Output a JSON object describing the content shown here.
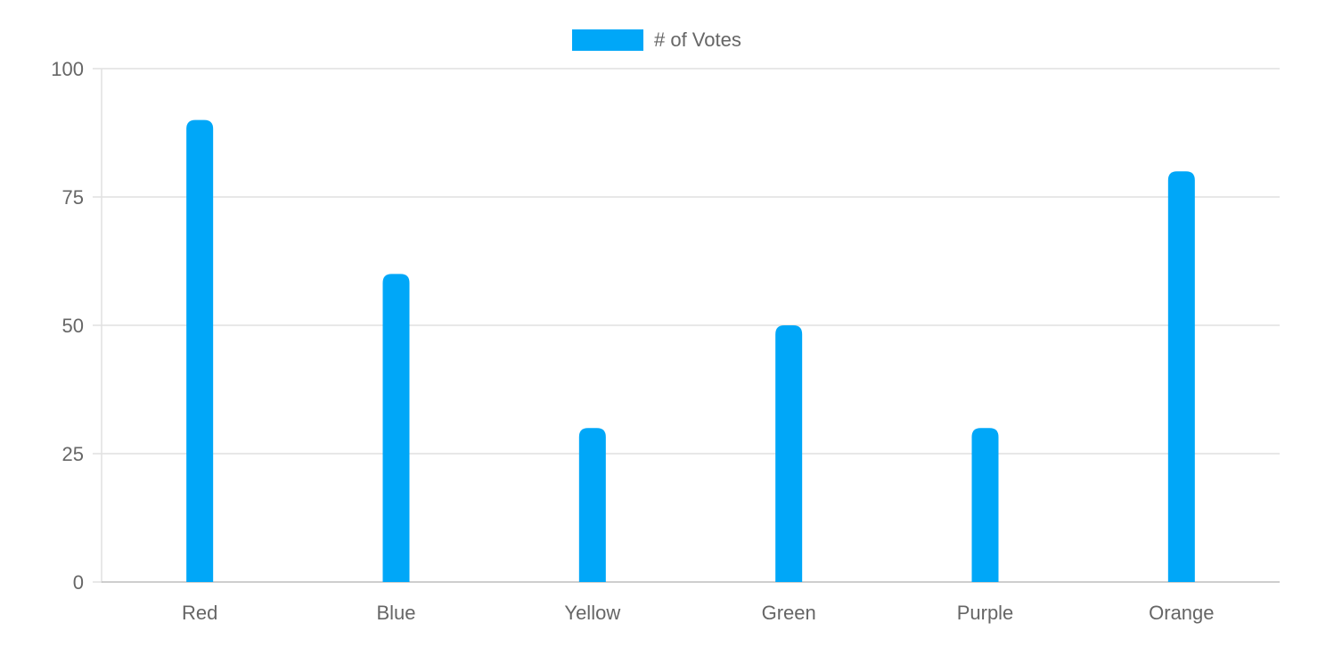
{
  "chart_data": {
    "type": "bar",
    "categories": [
      "Red",
      "Blue",
      "Yellow",
      "Green",
      "Purple",
      "Orange"
    ],
    "series": [
      {
        "name": "# of Votes",
        "values": [
          90,
          60,
          30,
          50,
          30,
          80
        ],
        "color": "#00a7f8"
      }
    ],
    "ylim": [
      0,
      100
    ],
    "yticks": [
      0,
      25,
      50,
      75,
      100
    ],
    "grid": true,
    "legend_position": "top-center",
    "bar_corners": "rounded-top"
  },
  "colors": {
    "grid": "#e1e1e1",
    "axis": "#bdbdbd",
    "tick_text": "#666666"
  }
}
